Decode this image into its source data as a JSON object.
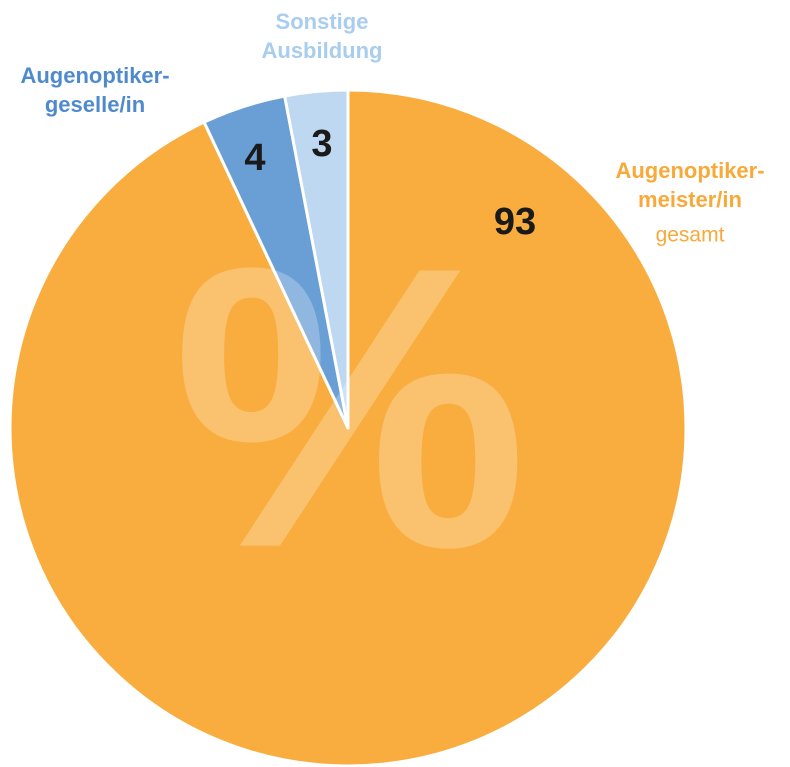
{
  "chart_data": {
    "type": "pie",
    "categories": [
      [
        "Augenoptiker-",
        "meister/in"
      ],
      [
        "Augenoptiker-",
        "geselle/in"
      ],
      [
        "Sonstige",
        "Ausbildung"
      ]
    ],
    "values": [
      93,
      4,
      3
    ],
    "colors": [
      "#f9ad3f",
      "#6a9fd6",
      "#bdd8f0"
    ],
    "label_colors": [
      "#f9a93a",
      "#4f8bcc",
      "#a8cdee"
    ],
    "annotation": "gesamt",
    "watermark": "%"
  }
}
